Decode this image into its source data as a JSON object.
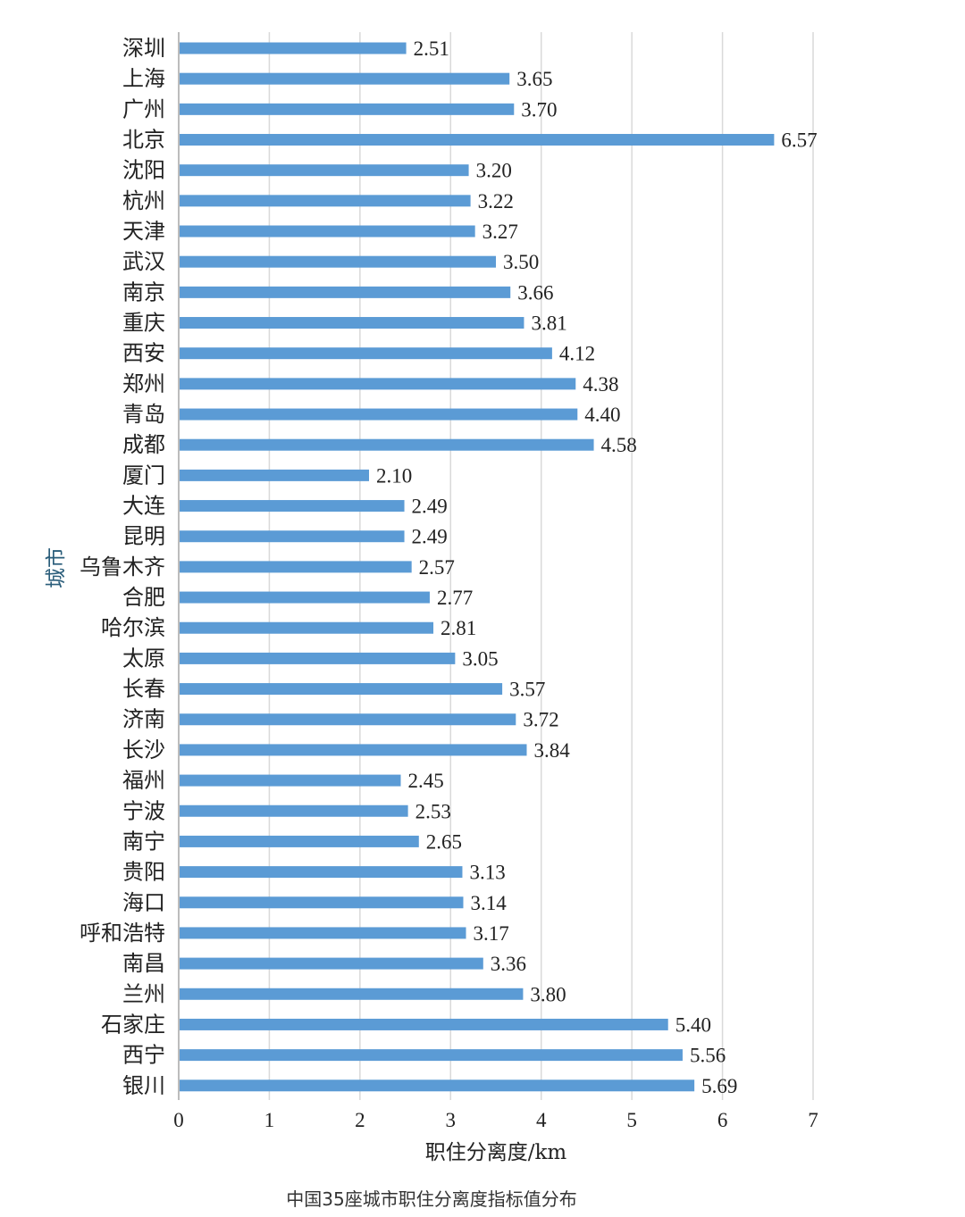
{
  "chart_data": {
    "type": "bar",
    "orientation": "horizontal",
    "categories": [
      "深圳",
      "上海",
      "广州",
      "北京",
      "沈阳",
      "杭州",
      "天津",
      "武汉",
      "南京",
      "重庆",
      "西安",
      "郑州",
      "青岛",
      "成都",
      "厦门",
      "大连",
      "昆明",
      "乌鲁木齐",
      "合肥",
      "哈尔滨",
      "太原",
      "长春",
      "济南",
      "长沙",
      "福州",
      "宁波",
      "南宁",
      "贵阳",
      "海口",
      "呼和浩特",
      "南昌",
      "兰州",
      "石家庄",
      "西宁",
      "银川"
    ],
    "values": [
      2.51,
      3.65,
      3.7,
      6.57,
      3.2,
      3.22,
      3.27,
      3.5,
      3.66,
      3.81,
      4.12,
      4.38,
      4.4,
      4.58,
      2.1,
      2.49,
      2.49,
      2.57,
      2.77,
      2.81,
      3.05,
      3.57,
      3.72,
      3.84,
      2.45,
      2.53,
      2.65,
      3.13,
      3.14,
      3.17,
      3.36,
      3.8,
      5.4,
      5.56,
      5.69
    ],
    "value_labels": [
      "2.51",
      "3.65",
      "3.70",
      "6.57",
      "3.20",
      "3.22",
      "3.27",
      "3.50",
      "3.66",
      "3.81",
      "4.12",
      "4.38",
      "4.40",
      "4.58",
      "2.10",
      "2.49",
      "2.49",
      "2.57",
      "2.77",
      "2.81",
      "3.05",
      "3.57",
      "3.72",
      "3.84",
      "2.45",
      "2.53",
      "2.65",
      "3.13",
      "3.14",
      "3.17",
      "3.36",
      "3.80",
      "5.40",
      "5.56",
      "5.69"
    ],
    "xlabel": "职住分离度/km",
    "ylabel": "城市",
    "xlim": [
      0,
      7
    ],
    "xticks": [
      "0",
      "1",
      "2",
      "3",
      "4",
      "5",
      "6",
      "7"
    ],
    "grid": "vertical",
    "bar_color": "#5b9bd5"
  },
  "caption": "中国35座城市职住分离度指标值分布"
}
